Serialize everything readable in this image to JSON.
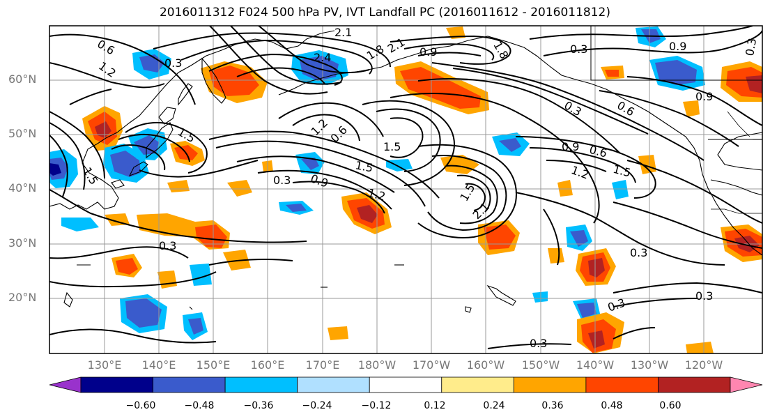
{
  "title": "2016011312 F024 500 hPa PV, IVT Landfall PC (2016011612 - 2016011812)",
  "lat_labels": [
    "60°N",
    "50°N",
    "40°N",
    "30°N",
    "20°N"
  ],
  "lon_labels": [
    "130°E",
    "140°E",
    "150°E",
    "160°E",
    "170°E",
    "180°W",
    "170°W",
    "160°W",
    "150°W",
    "140°W",
    "130°W",
    "120°W"
  ],
  "colorbar": {
    "ticks": [
      "−0.60",
      "−0.48",
      "−0.36",
      "−0.24",
      "−0.12",
      "0.12",
      "0.24",
      "0.36",
      "0.48",
      "0.60"
    ],
    "colors": [
      "#9932cc",
      "#00008b",
      "#3a5bcc",
      "#00bfff",
      "#b0e0ff",
      "#ffffff",
      "#ffec8b",
      "#ffa500",
      "#ff4500",
      "#b22222",
      "#ff86b0"
    ]
  },
  "contour_labels": [
    "0.6",
    "1.2",
    "2.1",
    "2.4",
    "1.8",
    "2.1",
    "0.9",
    "1.8",
    "0.3",
    "0.3",
    "0.9",
    "1.5",
    "1.2",
    "0.6",
    "1.5",
    "0.3",
    "0.9",
    "1.5",
    "1.2",
    "1.5",
    "2.1",
    "0.9",
    "0.6",
    "1.2",
    "1.5",
    "0.3",
    "0.3",
    "0.3",
    "0.3",
    "0.3",
    "0.3",
    "0.9",
    "0.6",
    "0.3",
    "1.5"
  ]
}
